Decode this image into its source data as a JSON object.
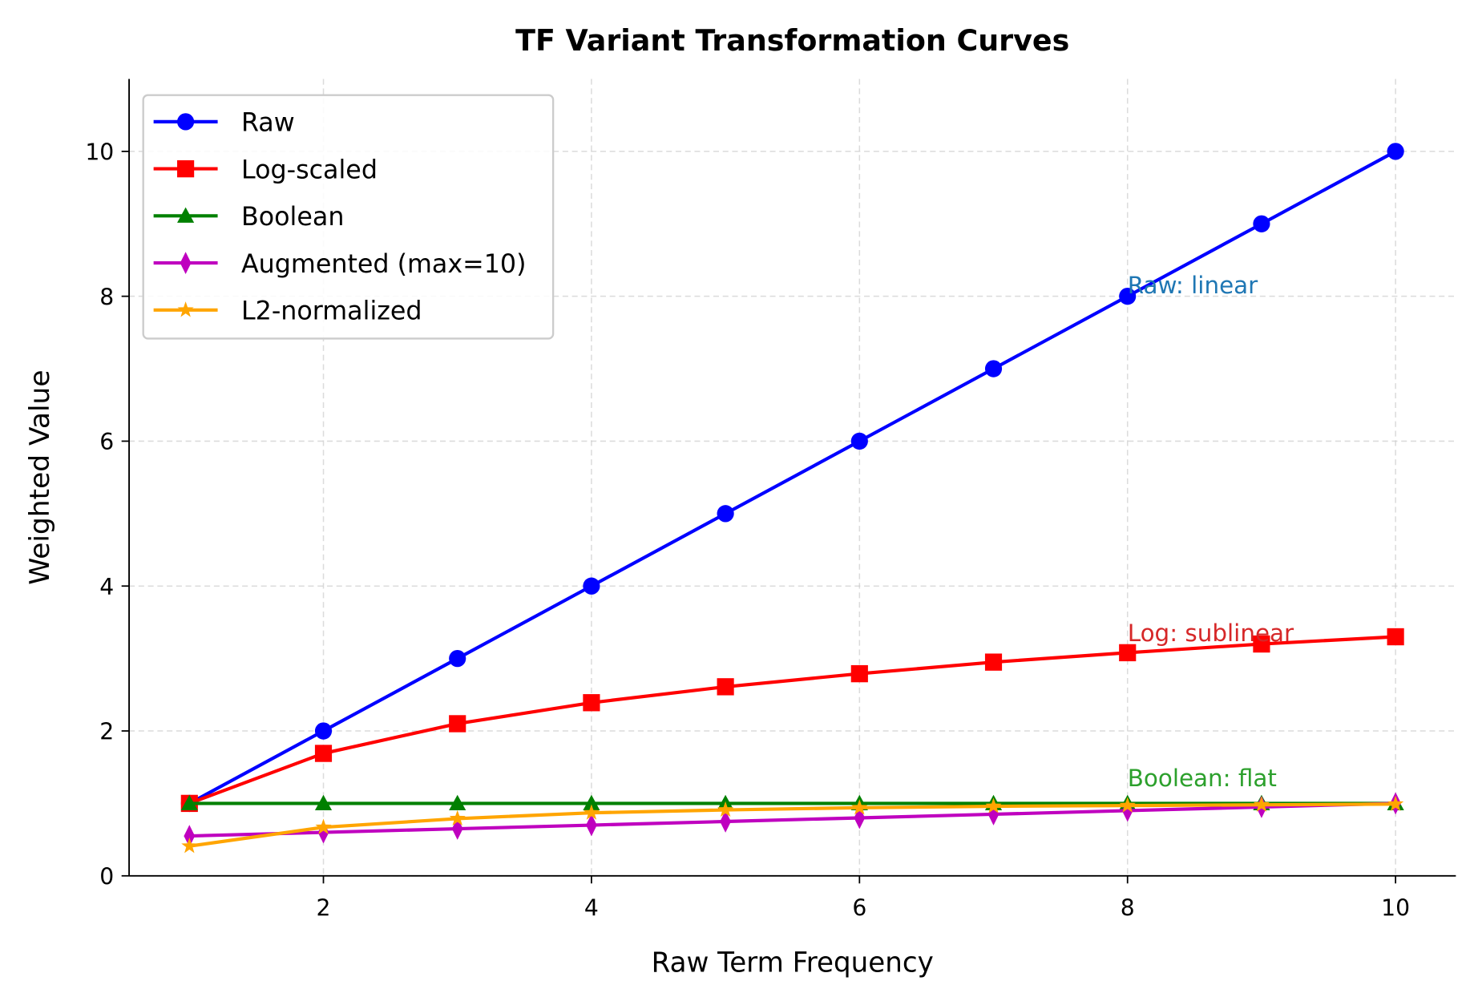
{
  "chart_data": {
    "type": "line",
    "title": "TF Variant Transformation Curves",
    "xlabel": "Raw Term Frequency",
    "ylabel": "Weighted Value",
    "xlim": [
      0.55,
      10.45
    ],
    "ylim": [
      0,
      11
    ],
    "xticks": [
      2,
      4,
      6,
      8,
      10
    ],
    "yticks": [
      0,
      2,
      4,
      6,
      8,
      10
    ],
    "grid": true,
    "legend_position": "top-left",
    "x": [
      1,
      2,
      3,
      4,
      5,
      6,
      7,
      8,
      9,
      10
    ],
    "series": [
      {
        "name": "Raw",
        "color": "#0000ff",
        "marker": "circle",
        "values": [
          1,
          2,
          3,
          4,
          5,
          6,
          7,
          8,
          9,
          10
        ]
      },
      {
        "name": "Log-scaled",
        "color": "#ff0000",
        "marker": "square",
        "values": [
          1,
          1.69,
          2.1,
          2.39,
          2.61,
          2.79,
          2.95,
          3.08,
          3.2,
          3.3
        ]
      },
      {
        "name": "Boolean",
        "color": "#008000",
        "marker": "triangle",
        "values": [
          1,
          1,
          1,
          1,
          1,
          1,
          1,
          1,
          1,
          1
        ]
      },
      {
        "name": "Augmented (max=10)",
        "color": "#bf00bf",
        "marker": "diamond",
        "values": [
          0.55,
          0.6,
          0.65,
          0.7,
          0.75,
          0.8,
          0.85,
          0.9,
          0.95,
          1.0
        ]
      },
      {
        "name": "L2-normalized",
        "color": "#ffa500",
        "marker": "star",
        "values": [
          0.41,
          0.67,
          0.79,
          0.87,
          0.91,
          0.94,
          0.96,
          0.97,
          0.98,
          0.99
        ]
      }
    ],
    "annotations": [
      {
        "text": "Raw: linear",
        "x": 8,
        "y": 8.0,
        "color": "#1f77b4"
      },
      {
        "text": "Log: sublinear",
        "x": 8,
        "y": 3.2,
        "color": "#d62728"
      },
      {
        "text": "Boolean: flat",
        "x": 8,
        "y": 1.2,
        "color": "#2ca02c"
      }
    ]
  }
}
